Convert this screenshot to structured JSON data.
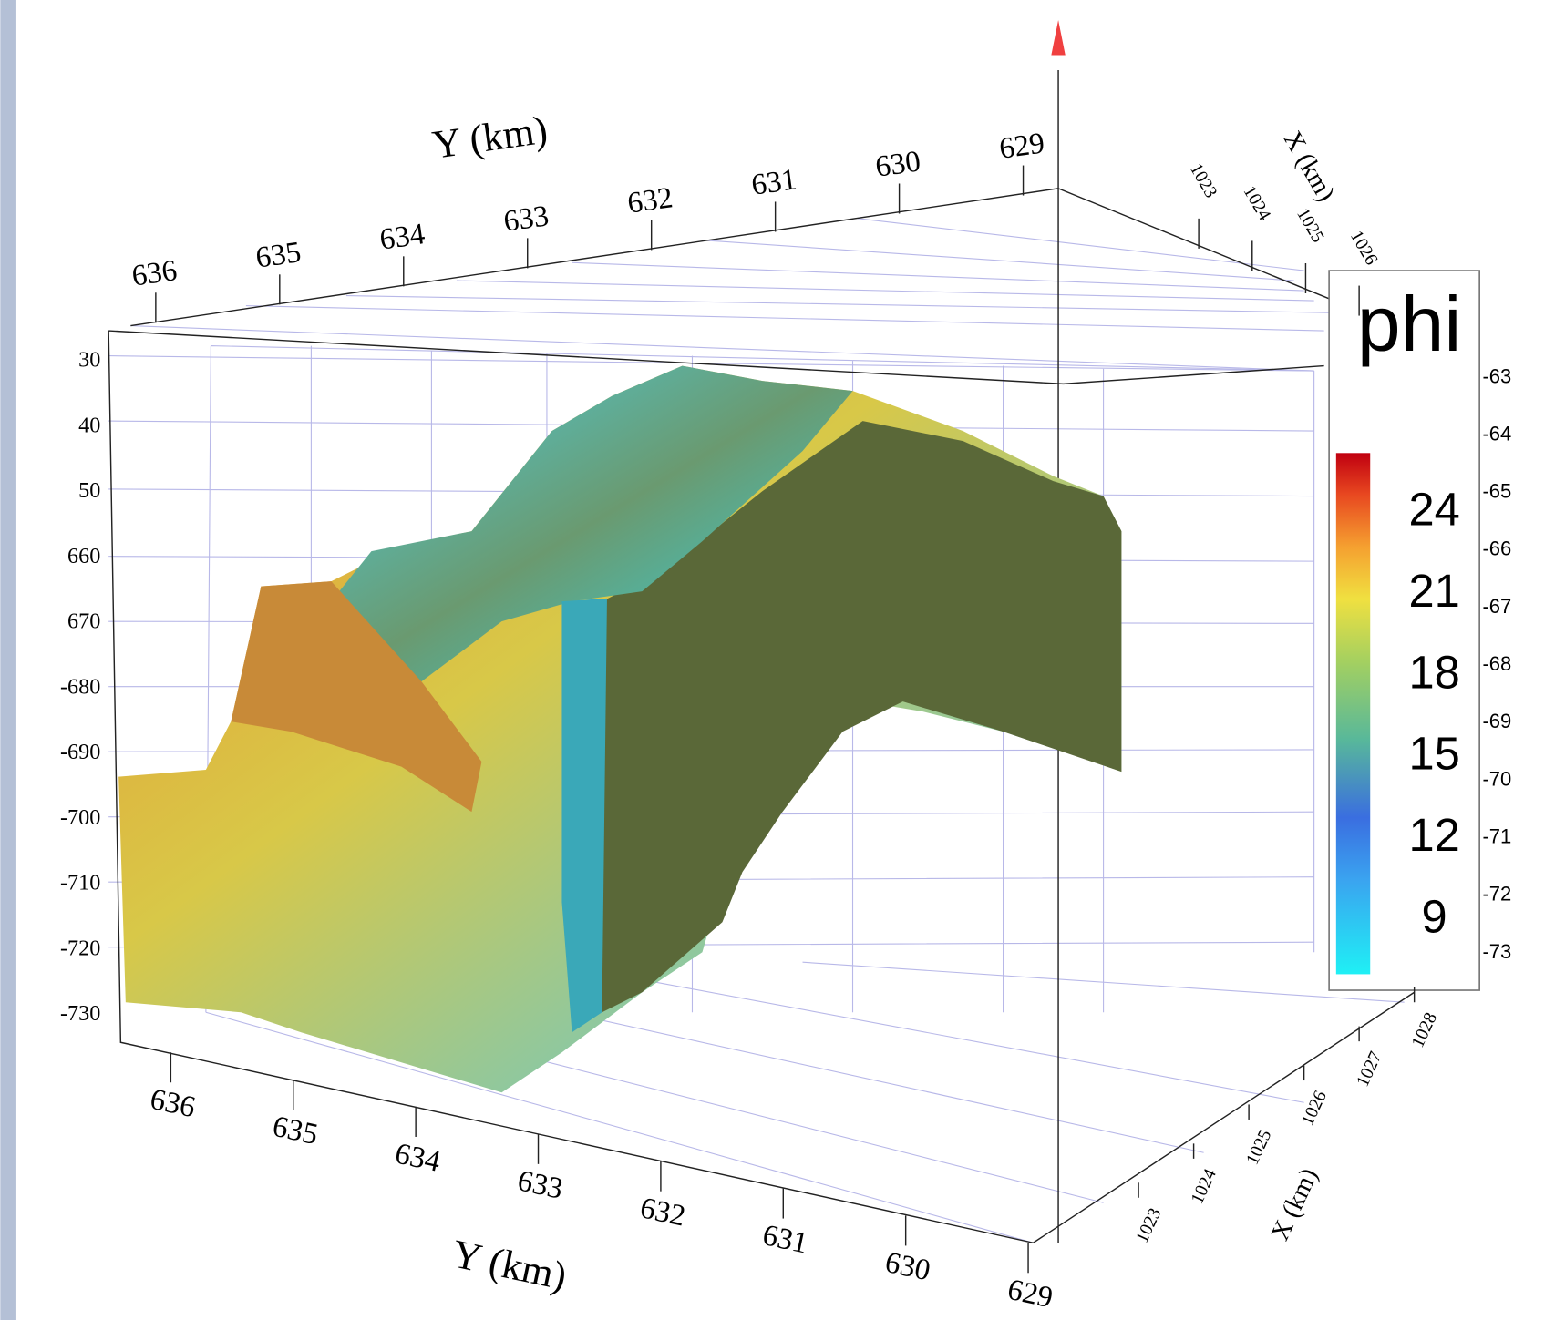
{
  "top_y_axis": {
    "label": "Y (km)",
    "ticks": [
      "636",
      "635",
      "634",
      "633",
      "632",
      "631",
      "630",
      "629"
    ]
  },
  "bottom_y_axis": {
    "label": "Y (km)",
    "ticks": [
      "636",
      "635",
      "634",
      "633",
      "632",
      "631",
      "630",
      "629"
    ]
  },
  "top_x_axis": {
    "label": "X (km)",
    "ticks": [
      "1023",
      "1024",
      "1025",
      "1026"
    ]
  },
  "bottom_x_axis": {
    "label": "X (km)",
    "ticks": [
      "1023",
      "1024",
      "1025",
      "1026",
      "1027",
      "1028"
    ]
  },
  "left_z_axis": {
    "ticks": [
      "30",
      "40",
      "50",
      "660",
      "670",
      "-680",
      "-690",
      "-700",
      "-710",
      "-720",
      "-730"
    ]
  },
  "right_z_axis": {
    "ticks": [
      "-63",
      "-64",
      "-65",
      "-66",
      "-67",
      "-68",
      "-69",
      "-70",
      "-71",
      "-72",
      "-73"
    ]
  },
  "colorbar": {
    "title": "phi",
    "ticks": [
      "24",
      "21",
      "18",
      "15",
      "12",
      "9"
    ]
  }
}
